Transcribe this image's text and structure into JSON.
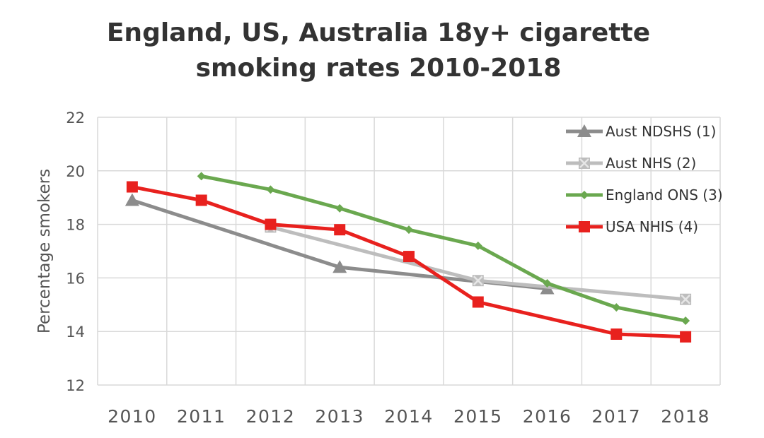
{
  "chart_data": {
    "type": "line",
    "title": [
      "England, US, Australia 18y+ cigarette",
      "smoking rates 2010-2018"
    ],
    "xlabel": "",
    "ylabel": "Percentage smokers",
    "categories": [
      "2010",
      "2011",
      "2012",
      "2013",
      "2014",
      "2015",
      "2016",
      "2017",
      "2018"
    ],
    "ylim": [
      12,
      22
    ],
    "yticks": [
      12,
      14,
      16,
      18,
      20,
      22
    ],
    "grid": true,
    "legend_position": "top-right",
    "series": [
      {
        "name": "Aust NDSHS (1)",
        "color": "#8c8c8c",
        "marker": "triangle",
        "values": [
          18.9,
          null,
          null,
          16.4,
          null,
          null,
          15.6,
          null,
          null
        ]
      },
      {
        "name": "Aust NHS (2)",
        "color": "#bdbdbd",
        "marker": "x-square",
        "values": [
          null,
          null,
          17.9,
          null,
          null,
          15.9,
          null,
          null,
          15.2
        ]
      },
      {
        "name": "England ONS (3)",
        "color": "#6aa84f",
        "marker": "diamond",
        "values": [
          null,
          19.8,
          19.3,
          18.6,
          17.8,
          17.2,
          15.8,
          14.9,
          14.4
        ]
      },
      {
        "name": "USA NHIS (4)",
        "color": "#e8211e",
        "marker": "square",
        "values": [
          19.4,
          18.9,
          18.0,
          17.8,
          16.8,
          15.1,
          null,
          13.9,
          13.8
        ]
      }
    ]
  }
}
